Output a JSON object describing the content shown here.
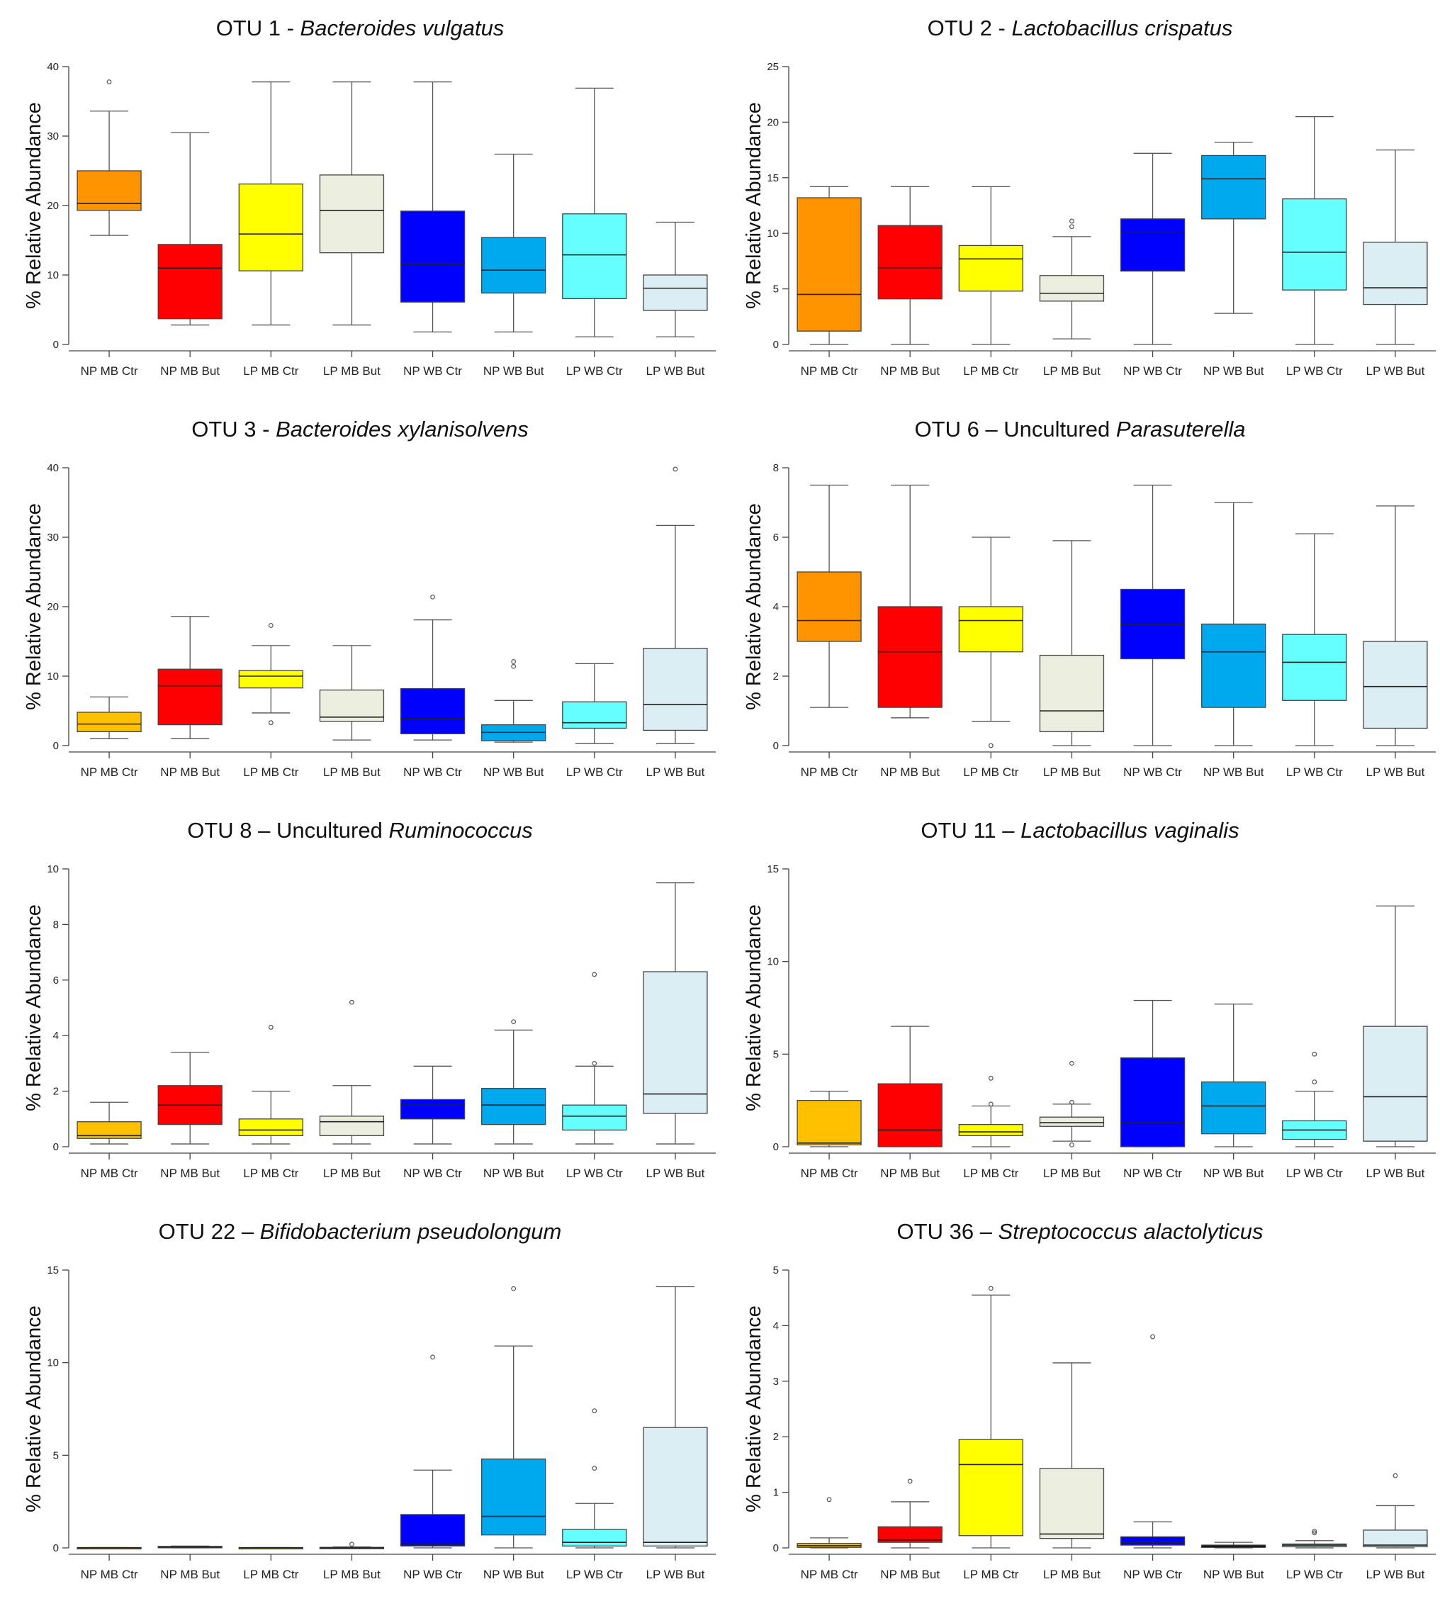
{
  "chart_data": [
    {
      "type": "box",
      "title_prefix": "OTU 1 - ",
      "title_species": "Bacteroides vulgatus",
      "ylabel": "% Relative Abundance",
      "ylim": [
        0,
        40
      ],
      "yticks": [
        0,
        10,
        20,
        30,
        40
      ],
      "categories": [
        "NP MB Ctr",
        "NP MB But",
        "LP MB Ctr",
        "LP MB But",
        "NP WB Ctr",
        "NP WB But",
        "LP WB Ctr",
        "LP WB But"
      ],
      "colors": [
        "#ff9400",
        "#ff0000",
        "#ffff00",
        "#eceee0",
        "#0000ff",
        "#00a8ee",
        "#66ffff",
        "#dbeef4"
      ],
      "boxes": [
        {
          "low": 15.7,
          "q1": 19.3,
          "median": 20.3,
          "q3": 25.0,
          "high": 33.6,
          "outliers": [
            37.8
          ]
        },
        {
          "low": 2.8,
          "q1": 3.7,
          "median": 11.0,
          "q3": 14.4,
          "high": 30.5,
          "outliers": []
        },
        {
          "low": 2.8,
          "q1": 10.6,
          "median": 15.9,
          "q3": 23.1,
          "high": 37.8,
          "outliers": []
        },
        {
          "low": 2.8,
          "q1": 13.2,
          "median": 19.3,
          "q3": 24.4,
          "high": 37.8,
          "outliers": []
        },
        {
          "low": 1.8,
          "q1": 6.1,
          "median": 11.6,
          "q3": 19.2,
          "high": 37.8,
          "outliers": []
        },
        {
          "low": 1.8,
          "q1": 7.4,
          "median": 10.7,
          "q3": 15.4,
          "high": 27.4,
          "outliers": []
        },
        {
          "low": 1.1,
          "q1": 6.6,
          "median": 12.9,
          "q3": 18.8,
          "high": 36.9,
          "outliers": []
        },
        {
          "low": 1.1,
          "q1": 4.9,
          "median": 8.1,
          "q3": 10.0,
          "high": 17.6,
          "outliers": []
        }
      ]
    },
    {
      "type": "box",
      "title_prefix": "OTU 2 - ",
      "title_species": "Lactobacillus crispatus",
      "ylabel": "% Relative Abundance",
      "ylim": [
        0,
        25
      ],
      "yticks": [
        0,
        5,
        10,
        15,
        20,
        25
      ],
      "categories": [
        "NP MB Ctr",
        "NP MB But",
        "LP MB Ctr",
        "LP MB But",
        "NP WB Ctr",
        "NP WB But",
        "LP WB Ctr",
        "LP WB But"
      ],
      "colors": [
        "#ff9400",
        "#ff0000",
        "#ffff00",
        "#eceee0",
        "#0000ff",
        "#00a8ee",
        "#66ffff",
        "#dbeef4"
      ],
      "boxes": [
        {
          "low": 0.0,
          "q1": 1.2,
          "median": 4.5,
          "q3": 13.2,
          "high": 14.2,
          "outliers": []
        },
        {
          "low": 0.0,
          "q1": 4.1,
          "median": 6.9,
          "q3": 10.7,
          "high": 14.2,
          "outliers": []
        },
        {
          "low": 0.0,
          "q1": 4.8,
          "median": 7.7,
          "q3": 8.9,
          "high": 14.2,
          "outliers": []
        },
        {
          "low": 0.5,
          "q1": 3.9,
          "median": 4.6,
          "q3": 6.2,
          "high": 9.7,
          "outliers": [
            10.6,
            11.1
          ]
        },
        {
          "low": 0.0,
          "q1": 6.6,
          "median": 10.1,
          "q3": 11.3,
          "high": 17.2,
          "outliers": []
        },
        {
          "low": 2.8,
          "q1": 11.3,
          "median": 14.9,
          "q3": 17.0,
          "high": 18.2,
          "outliers": []
        },
        {
          "low": 0.0,
          "q1": 4.9,
          "median": 8.3,
          "q3": 13.1,
          "high": 20.5,
          "outliers": []
        },
        {
          "low": 0.0,
          "q1": 3.6,
          "median": 5.1,
          "q3": 9.2,
          "high": 17.5,
          "outliers": []
        }
      ]
    },
    {
      "type": "box",
      "title_prefix": "OTU 3 - ",
      "title_species": "Bacteroides xylanisolvens",
      "ylabel": "% Relative Abundance",
      "ylim": [
        0,
        40
      ],
      "yticks": [
        0,
        10,
        20,
        30,
        40
      ],
      "categories": [
        "NP MB Ctr",
        "NP MB But",
        "LP MB Ctr",
        "LP MB But",
        "NP WB Ctr",
        "NP WB But",
        "LP WB Ctr",
        "LP WB But"
      ],
      "colors": [
        "#ffc000",
        "#ff0000",
        "#ffff00",
        "#eceee0",
        "#0000ff",
        "#00a8ee",
        "#66ffff",
        "#dbeef4"
      ],
      "boxes": [
        {
          "low": 1.0,
          "q1": 2.0,
          "median": 3.1,
          "q3": 4.8,
          "high": 7.0,
          "outliers": []
        },
        {
          "low": 1.0,
          "q1": 3.0,
          "median": 8.6,
          "q3": 11.0,
          "high": 18.6,
          "outliers": []
        },
        {
          "low": 4.7,
          "q1": 8.3,
          "median": 10.0,
          "q3": 10.8,
          "high": 14.4,
          "outliers": [
            3.3,
            17.3
          ]
        },
        {
          "low": 0.8,
          "q1": 3.5,
          "median": 4.1,
          "q3": 8.0,
          "high": 14.4,
          "outliers": []
        },
        {
          "low": 0.8,
          "q1": 1.7,
          "median": 3.8,
          "q3": 8.2,
          "high": 18.1,
          "outliers": [
            21.4
          ]
        },
        {
          "low": 0.5,
          "q1": 0.7,
          "median": 1.9,
          "q3": 3.0,
          "high": 6.5,
          "outliers": [
            11.4,
            12.1
          ]
        },
        {
          "low": 0.3,
          "q1": 2.5,
          "median": 3.3,
          "q3": 6.3,
          "high": 11.8,
          "outliers": []
        },
        {
          "low": 0.3,
          "q1": 2.2,
          "median": 5.9,
          "q3": 14.0,
          "high": 31.7,
          "outliers": [
            39.8
          ]
        }
      ]
    },
    {
      "type": "box",
      "title_prefix": "OTU 6 – Uncultured ",
      "title_species": "Parasuterella",
      "ylabel": "% Relative Abundance",
      "ylim": [
        0,
        8
      ],
      "yticks": [
        0,
        2,
        4,
        6,
        8
      ],
      "categories": [
        "NP MB Ctr",
        "NP MB But",
        "LP MB Ctr",
        "LP MB But",
        "NP WB Ctr",
        "NP WB But",
        "LP WB Ctr",
        "LP WB But"
      ],
      "colors": [
        "#ff9400",
        "#ff0000",
        "#ffff00",
        "#eceee0",
        "#0000ff",
        "#00a8ee",
        "#66ffff",
        "#dbeef4"
      ],
      "boxes": [
        {
          "low": 1.1,
          "q1": 3.0,
          "median": 3.6,
          "q3": 5.0,
          "high": 7.5,
          "outliers": []
        },
        {
          "low": 0.8,
          "q1": 1.1,
          "median": 2.7,
          "q3": 4.0,
          "high": 7.5,
          "outliers": []
        },
        {
          "low": 0.7,
          "q1": 2.7,
          "median": 3.6,
          "q3": 4.0,
          "high": 6.0,
          "outliers": [
            0.0
          ]
        },
        {
          "low": 0.0,
          "q1": 0.4,
          "median": 1.0,
          "q3": 2.6,
          "high": 5.9,
          "outliers": []
        },
        {
          "low": 0.0,
          "q1": 2.5,
          "median": 3.5,
          "q3": 4.5,
          "high": 7.5,
          "outliers": []
        },
        {
          "low": 0.0,
          "q1": 1.1,
          "median": 2.7,
          "q3": 3.5,
          "high": 7.0,
          "outliers": []
        },
        {
          "low": 0.0,
          "q1": 1.3,
          "median": 2.4,
          "q3": 3.2,
          "high": 6.1,
          "outliers": []
        },
        {
          "low": 0.0,
          "q1": 0.5,
          "median": 1.7,
          "q3": 3.0,
          "high": 6.9,
          "outliers": []
        }
      ]
    },
    {
      "type": "box",
      "title_prefix": "OTU 8 – Uncultured ",
      "title_species": "Ruminococcus",
      "ylabel": "% Relative Abundance",
      "ylim": [
        0,
        10
      ],
      "yticks": [
        0,
        2,
        4,
        6,
        8,
        10
      ],
      "categories": [
        "NP MB Ctr",
        "NP MB But",
        "LP MB Ctr",
        "LP MB But",
        "NP WB Ctr",
        "NP WB But",
        "LP WB Ctr",
        "LP WB But"
      ],
      "colors": [
        "#ffc000",
        "#ff0000",
        "#ffff00",
        "#eceee0",
        "#0000ff",
        "#00a8ee",
        "#66ffff",
        "#dbeef4"
      ],
      "boxes": [
        {
          "low": 0.1,
          "q1": 0.3,
          "median": 0.4,
          "q3": 0.9,
          "high": 1.6,
          "outliers": []
        },
        {
          "low": 0.1,
          "q1": 0.8,
          "median": 1.5,
          "q3": 2.2,
          "high": 3.4,
          "outliers": []
        },
        {
          "low": 0.1,
          "q1": 0.4,
          "median": 0.6,
          "q3": 1.0,
          "high": 2.0,
          "outliers": [
            4.3
          ]
        },
        {
          "low": 0.1,
          "q1": 0.4,
          "median": 0.9,
          "q3": 1.1,
          "high": 2.2,
          "outliers": [
            5.2
          ]
        },
        {
          "low": 0.1,
          "q1": 1.0,
          "median": 1.5,
          "q3": 1.7,
          "high": 2.9,
          "outliers": []
        },
        {
          "low": 0.1,
          "q1": 0.8,
          "median": 1.5,
          "q3": 2.1,
          "high": 4.2,
          "outliers": [
            4.5
          ]
        },
        {
          "low": 0.1,
          "q1": 0.6,
          "median": 1.1,
          "q3": 1.5,
          "high": 2.9,
          "outliers": [
            3.0,
            6.2
          ]
        },
        {
          "low": 0.1,
          "q1": 1.2,
          "median": 1.9,
          "q3": 6.3,
          "high": 9.5,
          "outliers": []
        }
      ]
    },
    {
      "type": "box",
      "title_prefix": "OTU 11 – ",
      "title_species": "Lactobacillus vaginalis",
      "ylabel": "% Relative Abundance",
      "ylim": [
        0,
        15
      ],
      "yticks": [
        0,
        5,
        10,
        15
      ],
      "categories": [
        "NP MB Ctr",
        "NP MB But",
        "LP MB Ctr",
        "LP MB But",
        "NP WB Ctr",
        "NP WB But",
        "LP WB Ctr",
        "LP WB But"
      ],
      "colors": [
        "#ffc000",
        "#ff0000",
        "#ffff00",
        "#eceee0",
        "#0000ff",
        "#00a8ee",
        "#66ffff",
        "#dbeef4"
      ],
      "boxes": [
        {
          "low": 0.0,
          "q1": 0.1,
          "median": 0.2,
          "q3": 2.5,
          "high": 3.0,
          "outliers": []
        },
        {
          "low": 0.0,
          "q1": 0.0,
          "median": 0.9,
          "q3": 3.4,
          "high": 6.5,
          "outliers": []
        },
        {
          "low": 0.0,
          "q1": 0.6,
          "median": 0.8,
          "q3": 1.2,
          "high": 2.2,
          "outliers": [
            2.3,
            3.7
          ]
        },
        {
          "low": 0.3,
          "q1": 1.1,
          "median": 1.3,
          "q3": 1.6,
          "high": 2.3,
          "outliers": [
            0.1,
            2.4,
            4.5
          ]
        },
        {
          "low": 0.0,
          "q1": 0.0,
          "median": 1.3,
          "q3": 4.8,
          "high": 7.9,
          "outliers": []
        },
        {
          "low": 0.0,
          "q1": 0.7,
          "median": 2.2,
          "q3": 3.5,
          "high": 7.7,
          "outliers": []
        },
        {
          "low": 0.0,
          "q1": 0.4,
          "median": 0.9,
          "q3": 1.4,
          "high": 3.0,
          "outliers": [
            3.5,
            5.0
          ]
        },
        {
          "low": 0.0,
          "q1": 0.3,
          "median": 2.7,
          "q3": 6.5,
          "high": 13.0,
          "outliers": []
        }
      ]
    },
    {
      "type": "box",
      "title_prefix": "OTU 22 – ",
      "title_species": "Bifidobacterium pseudolongum",
      "ylabel": "% Relative Abundance",
      "ylim": [
        0,
        15
      ],
      "yticks": [
        0,
        5,
        10,
        15
      ],
      "categories": [
        "NP MB Ctr",
        "NP MB But",
        "LP MB Ctr",
        "LP MB But",
        "NP WB Ctr",
        "NP WB But",
        "LP WB Ctr",
        "LP WB But"
      ],
      "colors": [
        "#ffc000",
        "#ff0000",
        "#ffff00",
        "#eceee0",
        "#0000ff",
        "#00a8ee",
        "#66ffff",
        "#dbeef4"
      ],
      "boxes": [
        {
          "low": 0.0,
          "q1": 0.0,
          "median": 0.0,
          "q3": 0.02,
          "high": 0.02,
          "outliers": []
        },
        {
          "low": 0.0,
          "q1": 0.02,
          "median": 0.05,
          "q3": 0.08,
          "high": 0.1,
          "outliers": []
        },
        {
          "low": 0.0,
          "q1": 0.0,
          "median": 0.0,
          "q3": 0.02,
          "high": 0.02,
          "outliers": []
        },
        {
          "low": 0.0,
          "q1": 0.0,
          "median": 0.0,
          "q3": 0.03,
          "high": 0.05,
          "outliers": [
            0.2
          ]
        },
        {
          "low": 0.0,
          "q1": 0.1,
          "median": 0.2,
          "q3": 1.8,
          "high": 4.2,
          "outliers": [
            10.3
          ]
        },
        {
          "low": 0.0,
          "q1": 0.7,
          "median": 1.7,
          "q3": 4.8,
          "high": 10.9,
          "outliers": [
            14.0
          ]
        },
        {
          "low": 0.0,
          "q1": 0.1,
          "median": 0.3,
          "q3": 1.0,
          "high": 2.4,
          "outliers": [
            4.3,
            7.4
          ]
        },
        {
          "low": 0.0,
          "q1": 0.1,
          "median": 0.3,
          "q3": 6.5,
          "high": 14.1,
          "outliers": []
        }
      ]
    },
    {
      "type": "box",
      "title_prefix": "OTU 36 – ",
      "title_species": "Streptococcus alactolyticus",
      "ylabel": "% Relative Abundance",
      "ylim": [
        0,
        5
      ],
      "yticks": [
        0,
        1,
        2,
        3,
        4,
        5
      ],
      "categories": [
        "NP MB Ctr",
        "NP MB But",
        "LP MB Ctr",
        "LP MB But",
        "NP WB Ctr",
        "NP WB But",
        "LP WB Ctr",
        "LP WB But"
      ],
      "colors": [
        "#ffc000",
        "#ff0000",
        "#ffff00",
        "#eceee0",
        "#0000ff",
        "#000000",
        "#66ffff",
        "#dbeef4"
      ],
      "boxes": [
        {
          "low": 0.0,
          "q1": 0.01,
          "median": 0.04,
          "q3": 0.08,
          "high": 0.18,
          "outliers": [
            0.87
          ]
        },
        {
          "low": 0.0,
          "q1": 0.1,
          "median": 0.14,
          "q3": 0.38,
          "high": 0.83,
          "outliers": [
            1.2
          ]
        },
        {
          "low": 0.0,
          "q1": 0.22,
          "median": 1.5,
          "q3": 1.95,
          "high": 4.55,
          "outliers": [
            4.67
          ]
        },
        {
          "low": 0.0,
          "q1": 0.17,
          "median": 0.25,
          "q3": 1.43,
          "high": 3.33,
          "outliers": []
        },
        {
          "low": 0.0,
          "q1": 0.05,
          "median": 0.1,
          "q3": 0.2,
          "high": 0.47,
          "outliers": [
            3.8
          ]
        },
        {
          "low": 0.0,
          "q1": 0.01,
          "median": 0.02,
          "q3": 0.05,
          "high": 0.1,
          "outliers": []
        },
        {
          "low": 0.0,
          "q1": 0.02,
          "median": 0.05,
          "q3": 0.07,
          "high": 0.13,
          "outliers": [
            0.27,
            0.3
          ]
        },
        {
          "low": 0.0,
          "q1": 0.02,
          "median": 0.05,
          "q3": 0.32,
          "high": 0.76,
          "outliers": [
            1.3
          ]
        }
      ]
    }
  ]
}
